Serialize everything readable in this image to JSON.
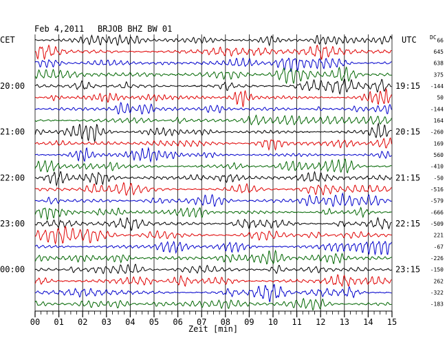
{
  "header": {
    "date": "Feb 4,2011",
    "station": "BRJOB BHZ BW 01",
    "left_zone": "CET",
    "right_zone": "UTC",
    "dc_label": "DC"
  },
  "chart_data": {
    "type": "line",
    "title": "Feb 4,2011   BRJOB BHZ BW 01",
    "xlabel": "Zeit [min]",
    "xlim": [
      0,
      15
    ],
    "x_ticks": [
      "00",
      "01",
      "02",
      "03",
      "04",
      "05",
      "06",
      "07",
      "08",
      "09",
      "10",
      "11",
      "12",
      "13",
      "14",
      "15"
    ],
    "rows_per_hour": 4,
    "trace_colors": [
      "#000000",
      "#e00000",
      "#0000cc",
      "#006600"
    ],
    "cet_labels": [
      {
        "row": 4,
        "text": "20:00"
      },
      {
        "row": 8,
        "text": "21:00"
      },
      {
        "row": 12,
        "text": "22:00"
      },
      {
        "row": 16,
        "text": "23:00"
      },
      {
        "row": 20,
        "text": "00:00"
      }
    ],
    "utc_labels": [
      {
        "row": 4,
        "text": "19:15"
      },
      {
        "row": 8,
        "text": "20:15"
      },
      {
        "row": 12,
        "text": "21:15"
      },
      {
        "row": 16,
        "text": "22:15"
      },
      {
        "row": 20,
        "text": "23:15"
      }
    ],
    "dc_offsets": [
      "66",
      "645",
      "638",
      "375",
      "-144",
      "50",
      "-144",
      "164",
      "-260",
      "169",
      "560",
      "-410",
      "-50",
      "-516",
      "-579",
      "-666",
      "-509",
      "221",
      "-67",
      "-226",
      "-150",
      "262",
      "-322",
      "-183"
    ]
  }
}
